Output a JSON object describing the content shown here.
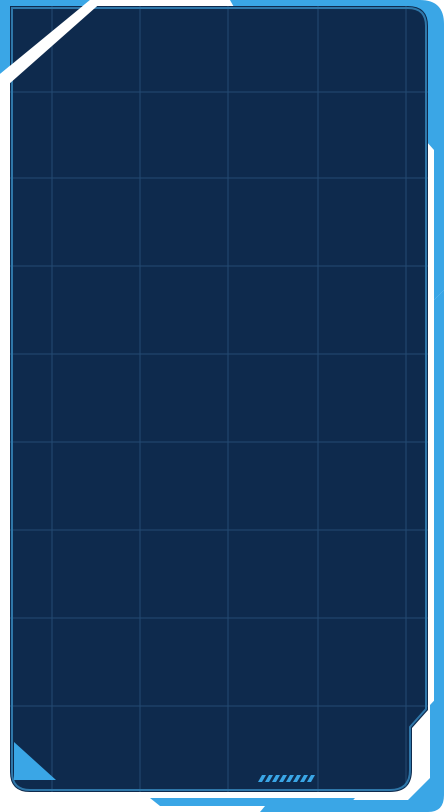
{
  "theme": {
    "panel_fill": "#0e2a4d",
    "grid_line": "#244a72",
    "accent": "#3aa6e6",
    "inner_border": "#2f77a9",
    "page_background": "#ffffff"
  },
  "decorations": {
    "corner_icon": "triangle-corner-icon",
    "hatch_icon": "hatch-marks-icon",
    "hatch_count": 8
  }
}
